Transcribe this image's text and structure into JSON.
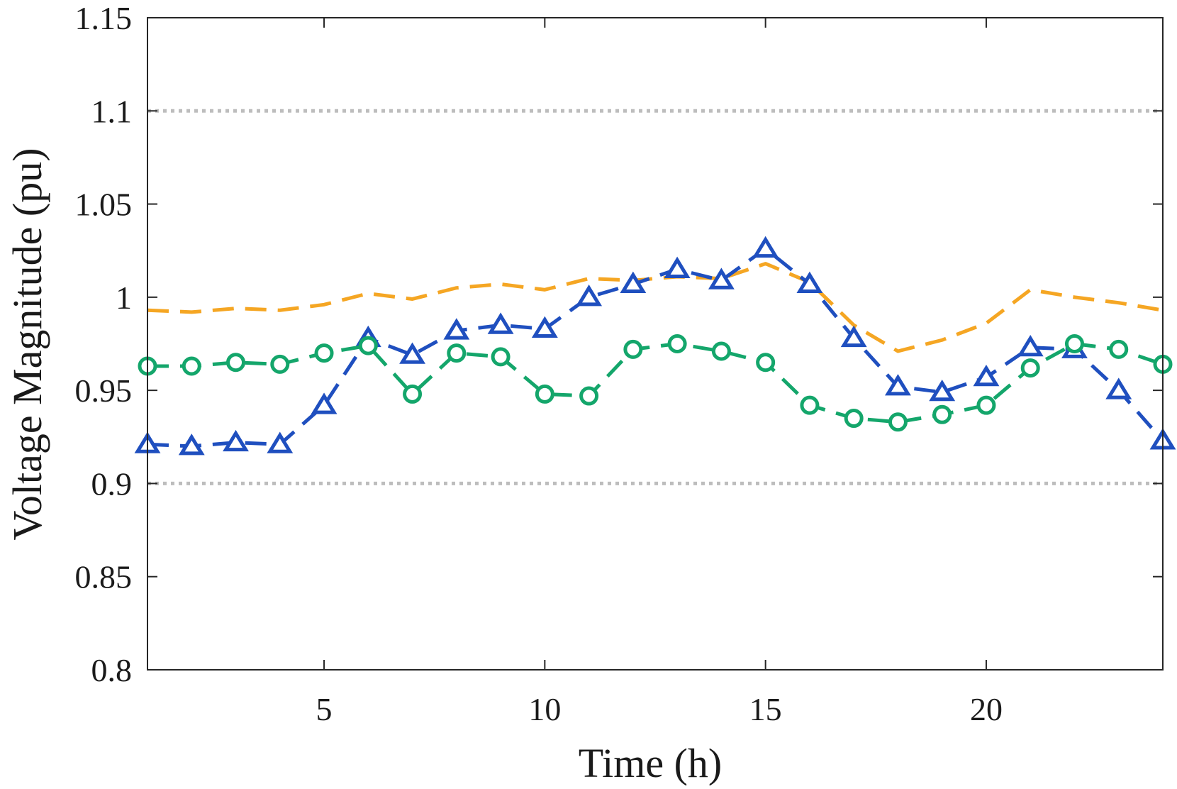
{
  "chart_data": {
    "type": "line",
    "title": "",
    "xlabel": "Time (h)",
    "ylabel": "Voltage Magnitude (pu)",
    "xlim": [
      1,
      24
    ],
    "ylim": [
      0.8,
      1.15
    ],
    "xticks": [
      5,
      10,
      15,
      20
    ],
    "xtick_labels": [
      "5",
      "10",
      "15",
      "20"
    ],
    "yticks": [
      0.8,
      0.85,
      0.9,
      0.95,
      1.0,
      1.05,
      1.1,
      1.15
    ],
    "ytick_labels": [
      "0.8",
      "0.85",
      "0.9",
      "0.95",
      "1",
      "1.05",
      "1.1",
      "1.15"
    ],
    "grid": false,
    "legend": null,
    "x": [
      1,
      2,
      3,
      4,
      5,
      6,
      7,
      8,
      9,
      10,
      11,
      12,
      13,
      14,
      15,
      16,
      17,
      18,
      19,
      20,
      21,
      22,
      23,
      24
    ],
    "reference_lines": [
      {
        "name": "upper-limit",
        "value": 1.1,
        "color": "#bdbdbd",
        "style": "dotted"
      },
      {
        "name": "lower-limit",
        "value": 0.9,
        "color": "#bdbdbd",
        "style": "dotted"
      }
    ],
    "series": [
      {
        "name": "orange-dashed",
        "color": "#f5a623",
        "line_style": "dashed",
        "marker": "none",
        "values": [
          0.993,
          0.992,
          0.994,
          0.993,
          0.996,
          1.002,
          0.999,
          1.005,
          1.007,
          1.004,
          1.01,
          1.009,
          1.011,
          1.01,
          1.018,
          1.008,
          0.985,
          0.971,
          0.977,
          0.986,
          1.004,
          1.0,
          0.997,
          0.993
        ]
      },
      {
        "name": "blue-triangle",
        "color": "#1f4fbf",
        "line_style": "dashed",
        "marker": "triangle",
        "values": [
          0.921,
          0.92,
          0.922,
          0.921,
          0.942,
          0.978,
          0.969,
          0.982,
          0.985,
          0.983,
          1.0,
          1.007,
          1.015,
          1.009,
          1.026,
          1.007,
          0.978,
          0.952,
          0.949,
          0.957,
          0.973,
          0.972,
          0.95,
          0.923
        ]
      },
      {
        "name": "green-circle",
        "color": "#14a66b",
        "line_style": "dashed",
        "marker": "circle",
        "values": [
          0.963,
          0.963,
          0.965,
          0.964,
          0.97,
          0.974,
          0.948,
          0.97,
          0.968,
          0.948,
          0.947,
          0.972,
          0.975,
          0.971,
          0.965,
          0.942,
          0.935,
          0.933,
          0.937,
          0.942,
          0.962,
          0.975,
          0.972,
          0.964
        ]
      }
    ]
  }
}
